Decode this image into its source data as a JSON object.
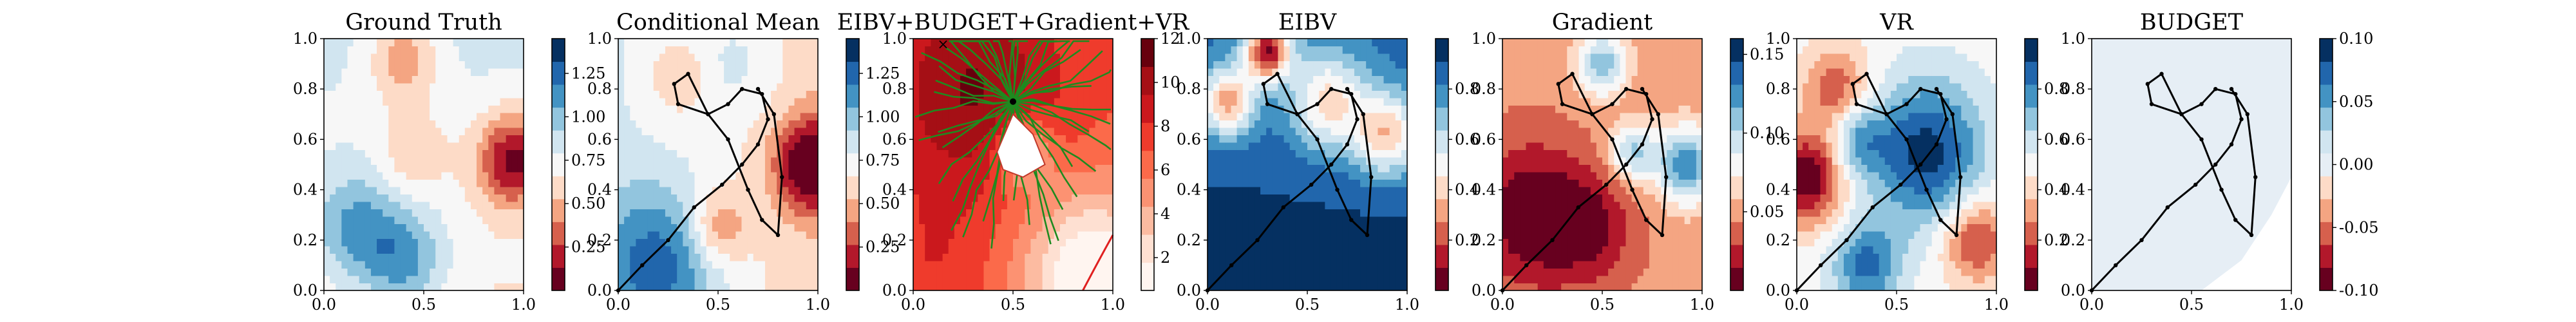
{
  "figure": {
    "panels": [
      {
        "id": "ground_truth",
        "title": "Ground Truth",
        "colormap": "RdBu",
        "colorbar_ticks": [
          "0.25",
          "0.50",
          "0.75",
          "1.00",
          "1.25"
        ],
        "colorbar_range": [
          0.0,
          1.45
        ]
      },
      {
        "id": "conditional_mean",
        "title": "Conditional Mean",
        "colormap": "RdBu",
        "colorbar_ticks": [
          "0.25",
          "0.50",
          "0.75",
          "1.00",
          "1.25"
        ],
        "colorbar_range": [
          0.0,
          1.45
        ]
      },
      {
        "id": "combined_cost",
        "title": "EIBV+BUDGET+Gradient+VR",
        "colormap": "Reds",
        "colorbar_ticks": [
          "2",
          "4",
          "6",
          "8",
          "10",
          "12"
        ],
        "colorbar_range": [
          0.5,
          12.0
        ]
      },
      {
        "id": "eibv",
        "title": "EIBV",
        "colormap": "RdBu",
        "colorbar_ticks": [
          "0.2",
          "0.4",
          "0.6",
          "0.8"
        ],
        "colorbar_range": [
          0.0,
          1.0
        ]
      },
      {
        "id": "gradient",
        "title": "Gradient",
        "colormap": "RdBu",
        "colorbar_ticks": [
          "0.05",
          "0.10",
          "0.15"
        ],
        "colorbar_range": [
          0.0,
          0.16
        ]
      },
      {
        "id": "vr",
        "title": "VR",
        "colormap": "RdBu",
        "colorbar_ticks": [
          "0.2",
          "0.4",
          "0.6",
          "0.8"
        ],
        "colorbar_range": [
          0.0,
          1.0
        ]
      },
      {
        "id": "budget",
        "title": "BUDGET",
        "colormap": "RdBu",
        "colorbar_ticks": [
          "-0.10",
          "-0.05",
          "0.00",
          "0.05",
          "0.10"
        ],
        "colorbar_range": [
          -0.1,
          0.1
        ]
      }
    ],
    "x_ticks": [
      "0.0",
      "0.5",
      "1.0"
    ],
    "y_ticks": [
      "0.0",
      "0.2",
      "0.4",
      "0.6",
      "0.8",
      "1.0"
    ]
  },
  "chart_data": [
    {
      "type": "heatmap",
      "title": "Ground Truth",
      "xlim": [
        0,
        1
      ],
      "ylim": [
        0,
        1
      ],
      "description_values": {
        "high_region": [
          0.95,
          0.5
        ],
        "high_value": 1.35,
        "low_region": [
          0.45,
          0.15
        ],
        "low_value": 0.2
      }
    },
    {
      "type": "heatmap",
      "title": "Conditional Mean",
      "xlim": [
        0,
        1
      ],
      "ylim": [
        0,
        1
      ],
      "path": [
        [
          0,
          0
        ],
        [
          0.12,
          0.1
        ],
        [
          0.25,
          0.2
        ],
        [
          0.38,
          0.33
        ],
        [
          0.52,
          0.42
        ],
        [
          0.62,
          0.5
        ],
        [
          0.7,
          0.58
        ],
        [
          0.75,
          0.68
        ],
        [
          0.72,
          0.78
        ],
        [
          0.62,
          0.8
        ],
        [
          0.55,
          0.74
        ],
        [
          0.45,
          0.7
        ],
        [
          0.3,
          0.74
        ],
        [
          0.28,
          0.82
        ],
        [
          0.35,
          0.86
        ],
        [
          0.45,
          0.7
        ],
        [
          0.55,
          0.6
        ],
        [
          0.65,
          0.4
        ],
        [
          0.72,
          0.28
        ],
        [
          0.8,
          0.22
        ],
        [
          0.82,
          0.45
        ],
        [
          0.78,
          0.7
        ],
        [
          0.7,
          0.8
        ]
      ]
    },
    {
      "type": "heatmap",
      "title": "EIBV+BUDGET+Gradient+VR",
      "xlim": [
        0,
        1
      ],
      "ylim": [
        0,
        1
      ],
      "tree_root": [
        0.5,
        0.75
      ],
      "start_marker": [
        0.15,
        0.98
      ]
    },
    {
      "type": "heatmap",
      "title": "EIBV",
      "xlim": [
        0,
        1
      ],
      "ylim": [
        0,
        1
      ]
    },
    {
      "type": "heatmap",
      "title": "Gradient",
      "xlim": [
        0,
        1
      ],
      "ylim": [
        0,
        1
      ]
    },
    {
      "type": "heatmap",
      "title": "VR",
      "xlim": [
        0,
        1
      ],
      "ylim": [
        0,
        1
      ]
    },
    {
      "type": "heatmap",
      "title": "BUDGET",
      "xlim": [
        0,
        1
      ],
      "ylim": [
        0,
        1
      ],
      "values_constant": 0.0
    }
  ]
}
